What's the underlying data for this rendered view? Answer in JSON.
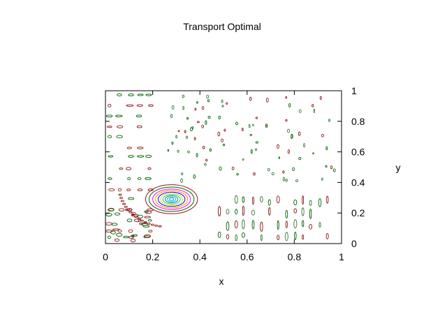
{
  "chart_data": {
    "type": "contour",
    "title": "Transport Optimal",
    "xlabel": "x",
    "ylabel": "y",
    "xlim": [
      0,
      1
    ],
    "ylim": [
      0,
      1
    ],
    "xticks": [
      0,
      0.2,
      0.4,
      0.6,
      0.8,
      1
    ],
    "yticks": [
      0,
      0.2,
      0.4,
      0.6,
      0.8,
      1
    ],
    "xtick_labels": [
      "0",
      "0.2",
      "0.4",
      "0.6",
      "0.8",
      "1"
    ],
    "ytick_labels": [
      "0",
      "0.2",
      "0.4",
      "0.6",
      "0.8",
      "1"
    ],
    "y_axis_side": "right",
    "grid": false,
    "legend": "none",
    "contour_center": [
      0.28,
      0.29
    ],
    "contour_levels": [
      {
        "rx": 0.11,
        "ry": 0.095,
        "color": "#8b1a1a"
      },
      {
        "rx": 0.095,
        "ry": 0.08,
        "color": "#006400"
      },
      {
        "rx": 0.08,
        "ry": 0.067,
        "color": "#ff00ff"
      },
      {
        "rx": 0.068,
        "ry": 0.057,
        "color": "#ff8c00"
      },
      {
        "rx": 0.057,
        "ry": 0.047,
        "color": "#0000ff"
      },
      {
        "rx": 0.047,
        "ry": 0.039,
        "color": "#ffd700"
      },
      {
        "rx": 0.037,
        "ry": 0.031,
        "color": "#00ced1"
      },
      {
        "rx": 0.027,
        "ry": 0.023,
        "color": "#228b22"
      },
      {
        "rx": 0.018,
        "ry": 0.015,
        "color": "#00bfff"
      },
      {
        "rx": 0.009,
        "ry": 0.008,
        "color": "#1e90ff"
      }
    ],
    "noise_colors": [
      "#006400",
      "#8b1a1a",
      "#2e7d32"
    ]
  }
}
